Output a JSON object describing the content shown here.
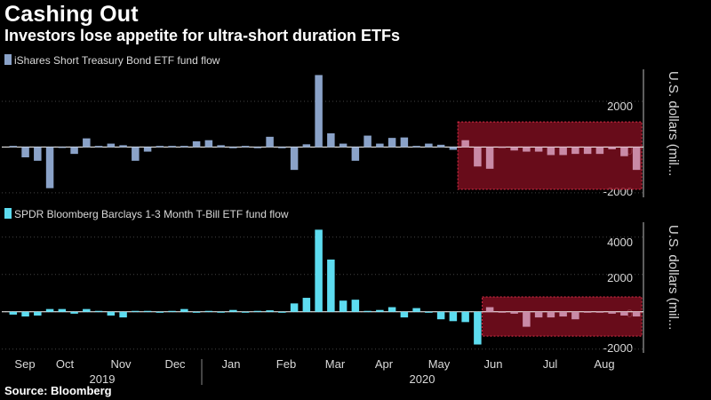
{
  "title": "Cashing Out",
  "subtitle": "Investors lose appetite for ultra-short duration ETFs",
  "source": "Source: Bloomberg",
  "colors": {
    "background": "#000000",
    "series1": "#8aa2c8",
    "series2": "#5ddcf0",
    "highlight_bar": "#c98aa6",
    "highlight_box_fill": "#7a0e1e",
    "highlight_box_stroke": "#e0304a",
    "grid": "#444444"
  },
  "x_axis": {
    "months": [
      "Sep",
      "Oct",
      "Nov",
      "Dec",
      "Jan",
      "Feb",
      "Mar",
      "Apr",
      "May",
      "Jun",
      "Jul",
      "Aug"
    ],
    "years": [
      "2019",
      "2020"
    ]
  },
  "chart_data": [
    {
      "type": "bar",
      "legend": "iShares Short Treasury Bond ETF fund flow",
      "ylabel": "U.S. dollars (mil...",
      "yticks": [
        "2000",
        "0",
        "-2000"
      ],
      "ylim": [
        -2200,
        3400
      ],
      "x": [
        "2019-09-06",
        "2019-09-13",
        "2019-09-20",
        "2019-09-27",
        "2019-10-04",
        "2019-10-11",
        "2019-10-18",
        "2019-10-25",
        "2019-11-01",
        "2019-11-08",
        "2019-11-15",
        "2019-11-22",
        "2019-11-29",
        "2019-12-06",
        "2019-12-13",
        "2019-12-20",
        "2019-12-27",
        "2020-01-03",
        "2020-01-10",
        "2020-01-17",
        "2020-01-24",
        "2020-01-31",
        "2020-02-07",
        "2020-02-14",
        "2020-02-21",
        "2020-02-28",
        "2020-03-06",
        "2020-03-13",
        "2020-03-20",
        "2020-03-27",
        "2020-04-03",
        "2020-04-10",
        "2020-04-17",
        "2020-04-24",
        "2020-05-01",
        "2020-05-08",
        "2020-05-15",
        "2020-05-22",
        "2020-05-29",
        "2020-06-05",
        "2020-06-12",
        "2020-06-19",
        "2020-06-26",
        "2020-07-03",
        "2020-07-10",
        "2020-07-17",
        "2020-07-24",
        "2020-07-31",
        "2020-08-07",
        "2020-08-14",
        "2020-08-21",
        "2020-08-28"
      ],
      "values": [
        50,
        -450,
        -600,
        -1800,
        -30,
        -300,
        380,
        50,
        150,
        80,
        -600,
        -200,
        50,
        50,
        50,
        250,
        300,
        80,
        -50,
        50,
        -50,
        450,
        -50,
        -1000,
        120,
        3150,
        600,
        150,
        -600,
        500,
        150,
        400,
        420,
        50,
        150,
        100,
        -120,
        300,
        -850,
        -950,
        -30,
        -150,
        -200,
        -200,
        -350,
        -350,
        -300,
        -300,
        -300,
        -100,
        -400,
        -1000
      ],
      "highlight_range": [
        37,
        51
      ]
    },
    {
      "type": "bar",
      "legend": "SPDR Bloomberg Barclays 1-3 Month T-Bill ETF fund flow",
      "ylabel": "U.S. dollars (mil...",
      "yticks": [
        "4000",
        "2000",
        "0",
        "-2000"
      ],
      "ylim": [
        -2200,
        4800
      ],
      "x": [
        "2019-09-06",
        "2019-09-13",
        "2019-09-20",
        "2019-09-27",
        "2019-10-04",
        "2019-10-11",
        "2019-10-18",
        "2019-10-25",
        "2019-11-01",
        "2019-11-08",
        "2019-11-15",
        "2019-11-22",
        "2019-11-29",
        "2019-12-06",
        "2019-12-13",
        "2019-12-20",
        "2019-12-27",
        "2020-01-03",
        "2020-01-10",
        "2020-01-17",
        "2020-01-24",
        "2020-01-31",
        "2020-02-07",
        "2020-02-14",
        "2020-02-21",
        "2020-02-28",
        "2020-03-06",
        "2020-03-13",
        "2020-03-20",
        "2020-03-27",
        "2020-04-03",
        "2020-04-10",
        "2020-04-17",
        "2020-04-24",
        "2020-05-01",
        "2020-05-08",
        "2020-05-15",
        "2020-05-22",
        "2020-05-29",
        "2020-06-05",
        "2020-06-12",
        "2020-06-19",
        "2020-06-26",
        "2020-07-03",
        "2020-07-10",
        "2020-07-17",
        "2020-07-24",
        "2020-07-31",
        "2020-08-07",
        "2020-08-14",
        "2020-08-21",
        "2020-08-28"
      ],
      "values": [
        -150,
        -250,
        -200,
        150,
        150,
        -100,
        150,
        50,
        -200,
        -300,
        50,
        50,
        -50,
        50,
        150,
        -50,
        50,
        0,
        100,
        0,
        50,
        80,
        -50,
        450,
        750,
        4400,
        2800,
        600,
        650,
        50,
        100,
        250,
        -300,
        200,
        -50,
        -400,
        -500,
        -550,
        -1750,
        250,
        -50,
        -100,
        -800,
        -300,
        -300,
        -250,
        -400,
        -50,
        -50,
        -100,
        -200,
        -250
      ],
      "highlight_range": [
        39,
        51
      ]
    }
  ]
}
